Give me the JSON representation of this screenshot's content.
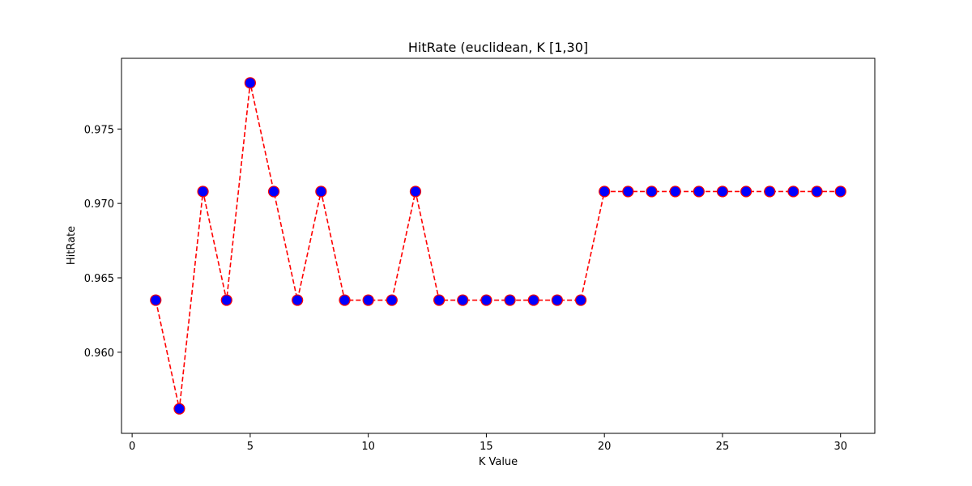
{
  "chart_data": {
    "type": "line",
    "title": "HitRate (euclidean, K [1,30]",
    "xlabel": "K Value",
    "ylabel": "HitRate",
    "x": [
      1,
      2,
      3,
      4,
      5,
      6,
      7,
      8,
      9,
      10,
      11,
      12,
      13,
      14,
      15,
      16,
      17,
      18,
      19,
      20,
      21,
      22,
      23,
      24,
      25,
      26,
      27,
      28,
      29,
      30
    ],
    "series": [
      {
        "values": [
          0.9635,
          0.9562,
          0.9708,
          0.9635,
          0.9781,
          0.9708,
          0.9635,
          0.9708,
          0.9635,
          0.9635,
          0.9635,
          0.9708,
          0.9635,
          0.9635,
          0.9635,
          0.9635,
          0.9635,
          0.9635,
          0.9635,
          0.9708,
          0.9708,
          0.9708,
          0.9708,
          0.9708,
          0.9708,
          0.9708,
          0.9708,
          0.9708,
          0.9708,
          0.9708
        ]
      }
    ],
    "xlim": [
      -0.45,
      31.45
    ],
    "ylim": [
      0.95455,
      0.97975
    ],
    "xticks": [
      0,
      5,
      10,
      15,
      20,
      25,
      30
    ],
    "xtick_labels": [
      "0",
      "5",
      "10",
      "15",
      "20",
      "25",
      "30"
    ],
    "yticks": [
      0.96,
      0.965,
      0.97,
      0.975
    ],
    "ytick_labels": [
      "0.960",
      "0.965",
      "0.970",
      "0.975"
    ],
    "grid": false,
    "line_style": "dashed",
    "line_color": "#ff0000",
    "marker_fill": "#0000ff",
    "marker_edge": "#ff0000"
  }
}
